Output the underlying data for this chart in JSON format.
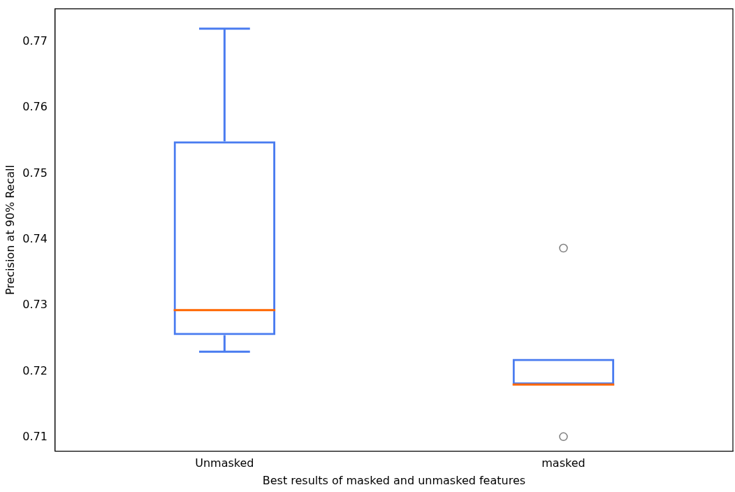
{
  "chart_data": {
    "type": "box",
    "xlabel": "Best results of masked and unmasked features",
    "ylabel": "Precision at 90% Recall",
    "categories": [
      "Unmasked",
      "masked"
    ],
    "series": [
      {
        "color": "#4a7cf0",
        "boxes": [
          {
            "low": 0.723,
            "q1": 0.7255,
            "median": 0.7293,
            "q3": 0.7549,
            "high": 0.772
          },
          {
            "low": 0.718,
            "q1": 0.718,
            "median": 0.718,
            "q3": 0.7219,
            "high": 0.7219,
            "outliers": [
              0.7387,
              0.7101
            ]
          }
        ]
      }
    ],
    "ylim": [
      0.7079,
      0.775
    ],
    "yticks": [
      0.71,
      0.72,
      0.73,
      0.74,
      0.75,
      0.76,
      0.77
    ],
    "grid": false,
    "legend": false
  }
}
